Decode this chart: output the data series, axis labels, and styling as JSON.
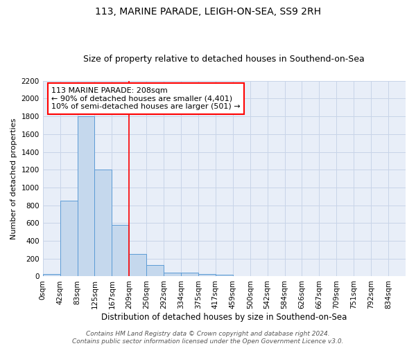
{
  "title1": "113, MARINE PARADE, LEIGH-ON-SEA, SS9 2RH",
  "title2": "Size of property relative to detached houses in Southend-on-Sea",
  "xlabel": "Distribution of detached houses by size in Southend-on-Sea",
  "ylabel": "Number of detached properties",
  "bin_labels": [
    "0sqm",
    "42sqm",
    "83sqm",
    "125sqm",
    "167sqm",
    "209sqm",
    "250sqm",
    "292sqm",
    "334sqm",
    "375sqm",
    "417sqm",
    "459sqm",
    "500sqm",
    "542sqm",
    "584sqm",
    "626sqm",
    "667sqm",
    "709sqm",
    "751sqm",
    "792sqm",
    "834sqm"
  ],
  "bar_heights": [
    25,
    850,
    1800,
    1200,
    580,
    255,
    130,
    45,
    40,
    30,
    20,
    0,
    0,
    0,
    0,
    0,
    0,
    0,
    0,
    0,
    0
  ],
  "bar_color": "#c5d8ed",
  "bar_edge_color": "#5b9bd5",
  "vline_x": 5,
  "vline_color": "red",
  "annotation_text": "113 MARINE PARADE: 208sqm\n← 90% of detached houses are smaller (4,401)\n10% of semi-detached houses are larger (501) →",
  "annotation_box_color": "white",
  "annotation_box_edge_color": "red",
  "ylim": [
    0,
    2200
  ],
  "yticks": [
    0,
    200,
    400,
    600,
    800,
    1000,
    1200,
    1400,
    1600,
    1800,
    2000,
    2200
  ],
  "grid_color": "#c8d4e8",
  "background_color": "#e8eef8",
  "footer_text": "Contains HM Land Registry data © Crown copyright and database right 2024.\nContains public sector information licensed under the Open Government Licence v3.0.",
  "title1_fontsize": 10,
  "title2_fontsize": 9,
  "xlabel_fontsize": 8.5,
  "ylabel_fontsize": 8,
  "tick_fontsize": 7.5,
  "annotation_fontsize": 8,
  "footer_fontsize": 6.5
}
